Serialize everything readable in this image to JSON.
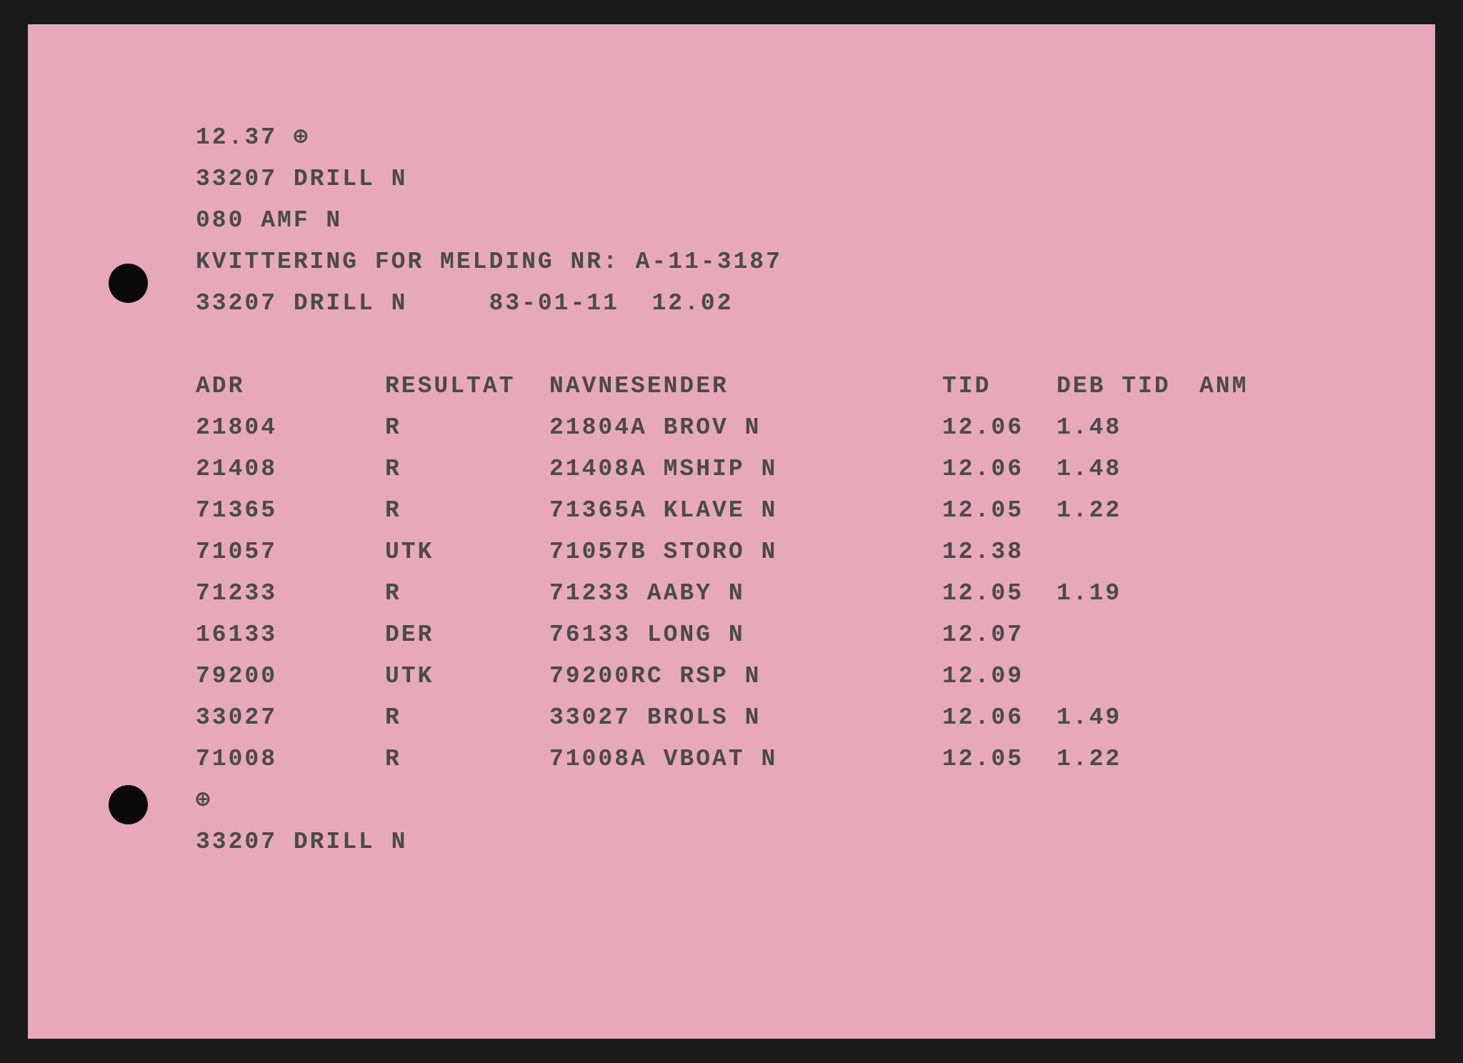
{
  "header": {
    "timestamp": "12.37 ⊕",
    "line2": "33207 DRILL N",
    "line3": "080 AMF N",
    "kvittering": "KVITTERING FOR MELDING NR: A-11-3187",
    "line5": "33207 DRILL N     83-01-11  12.02"
  },
  "columns": {
    "adr": "ADR",
    "resultat": "RESULTAT",
    "navnesender": "NAVNESENDER",
    "tid": "TID",
    "deb_tid": "DEB TID",
    "anm": "ANM"
  },
  "rows": [
    {
      "adr": "21804",
      "res": "R",
      "nav": "21804A BROV N",
      "tid": "12.06",
      "deb": "1.48",
      "anm": ""
    },
    {
      "adr": "21408",
      "res": "R",
      "nav": "21408A MSHIP N",
      "tid": "12.06",
      "deb": "1.48",
      "anm": ""
    },
    {
      "adr": "71365",
      "res": "R",
      "nav": "71365A KLAVE N",
      "tid": "12.05",
      "deb": "1.22",
      "anm": ""
    },
    {
      "adr": "71057",
      "res": "UTK",
      "nav": "71057B STORO N",
      "tid": "12.38",
      "deb": "",
      "anm": ""
    },
    {
      "adr": "71233",
      "res": "R",
      "nav": "71233 AABY N",
      "tid": "12.05",
      "deb": "1.19",
      "anm": ""
    },
    {
      "adr": "16133",
      "res": "DER",
      "nav": "76133 LONG N",
      "tid": "12.07",
      "deb": "",
      "anm": ""
    },
    {
      "adr": "79200",
      "res": "UTK",
      "nav": "79200RC RSP N",
      "tid": "12.09",
      "deb": "",
      "anm": ""
    },
    {
      "adr": "33027",
      "res": "R",
      "nav": "33027 BROLS N",
      "tid": "12.06",
      "deb": "1.49",
      "anm": ""
    },
    {
      "adr": "71008",
      "res": "R",
      "nav": "71008A VBOAT N",
      "tid": "12.05",
      "deb": "1.22",
      "anm": ""
    }
  ],
  "footer": {
    "marker": "⊕",
    "line": "33207 DRILL N"
  },
  "style": {
    "paper_color": "#e8a8bc",
    "text_color": "#4a4a4a",
    "font": "Courier New",
    "font_size": 33,
    "line_height": 58,
    "letter_spacing": 3,
    "background": "#1a1a1a",
    "hole_color": "#0a0a0a"
  }
}
